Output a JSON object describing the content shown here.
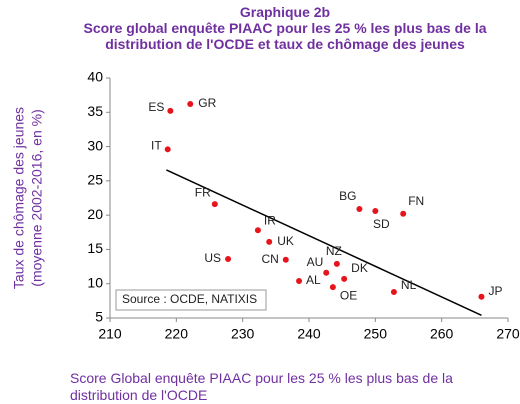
{
  "chart_data": {
    "type": "scatter",
    "title": "Graphique 2b",
    "subtitle": "Score global enquête PIAAC pour les 25 % les plus bas de la distribution de l'OCDE et taux de chômage des jeunes",
    "xlabel": "Score Global enquête PIAAC pour les 25 % les plus bas de la distribution de l'OCDE",
    "ylabel": [
      "Taux de chômage des jeunes",
      "(moyenne 2002-2016, en %)"
    ],
    "annotation": "Source : OCDE, NATIXIS",
    "color": "#e8141b",
    "series": [
      {
        "name": "Pays",
        "labels": [
          "ES",
          "GR",
          "IT",
          "FR",
          "IR",
          "UK",
          "US",
          "CN",
          "AU",
          "NZ",
          "AL",
          "DK",
          "OE",
          "BG",
          "SD",
          "FN",
          "NL",
          "JP"
        ],
        "x": [
          219.1,
          222.1,
          218.7,
          225.8,
          232.3,
          234,
          227.8,
          236.5,
          242.6,
          244.2,
          238.5,
          245.3,
          243.6,
          247.6,
          250,
          254.2,
          252.8,
          266
        ],
        "values": [
          35.2,
          36.2,
          29.6,
          21.6,
          17.8,
          16.1,
          13.6,
          13.5,
          11.6,
          12.9,
          10.4,
          10.7,
          9.5,
          20.9,
          20.6,
          20.2,
          8.8,
          8.1
        ]
      }
    ],
    "trendline": {
      "x": [
        218.5,
        266
      ],
      "values": [
        26.6,
        5.4
      ]
    },
    "xlim": [
      210,
      270
    ],
    "xticks": [
      210,
      220,
      230,
      240,
      250,
      260,
      270
    ],
    "ylim": [
      5,
      40
    ],
    "yticks": [
      5,
      10,
      15,
      20,
      25,
      30,
      35,
      40
    ]
  }
}
